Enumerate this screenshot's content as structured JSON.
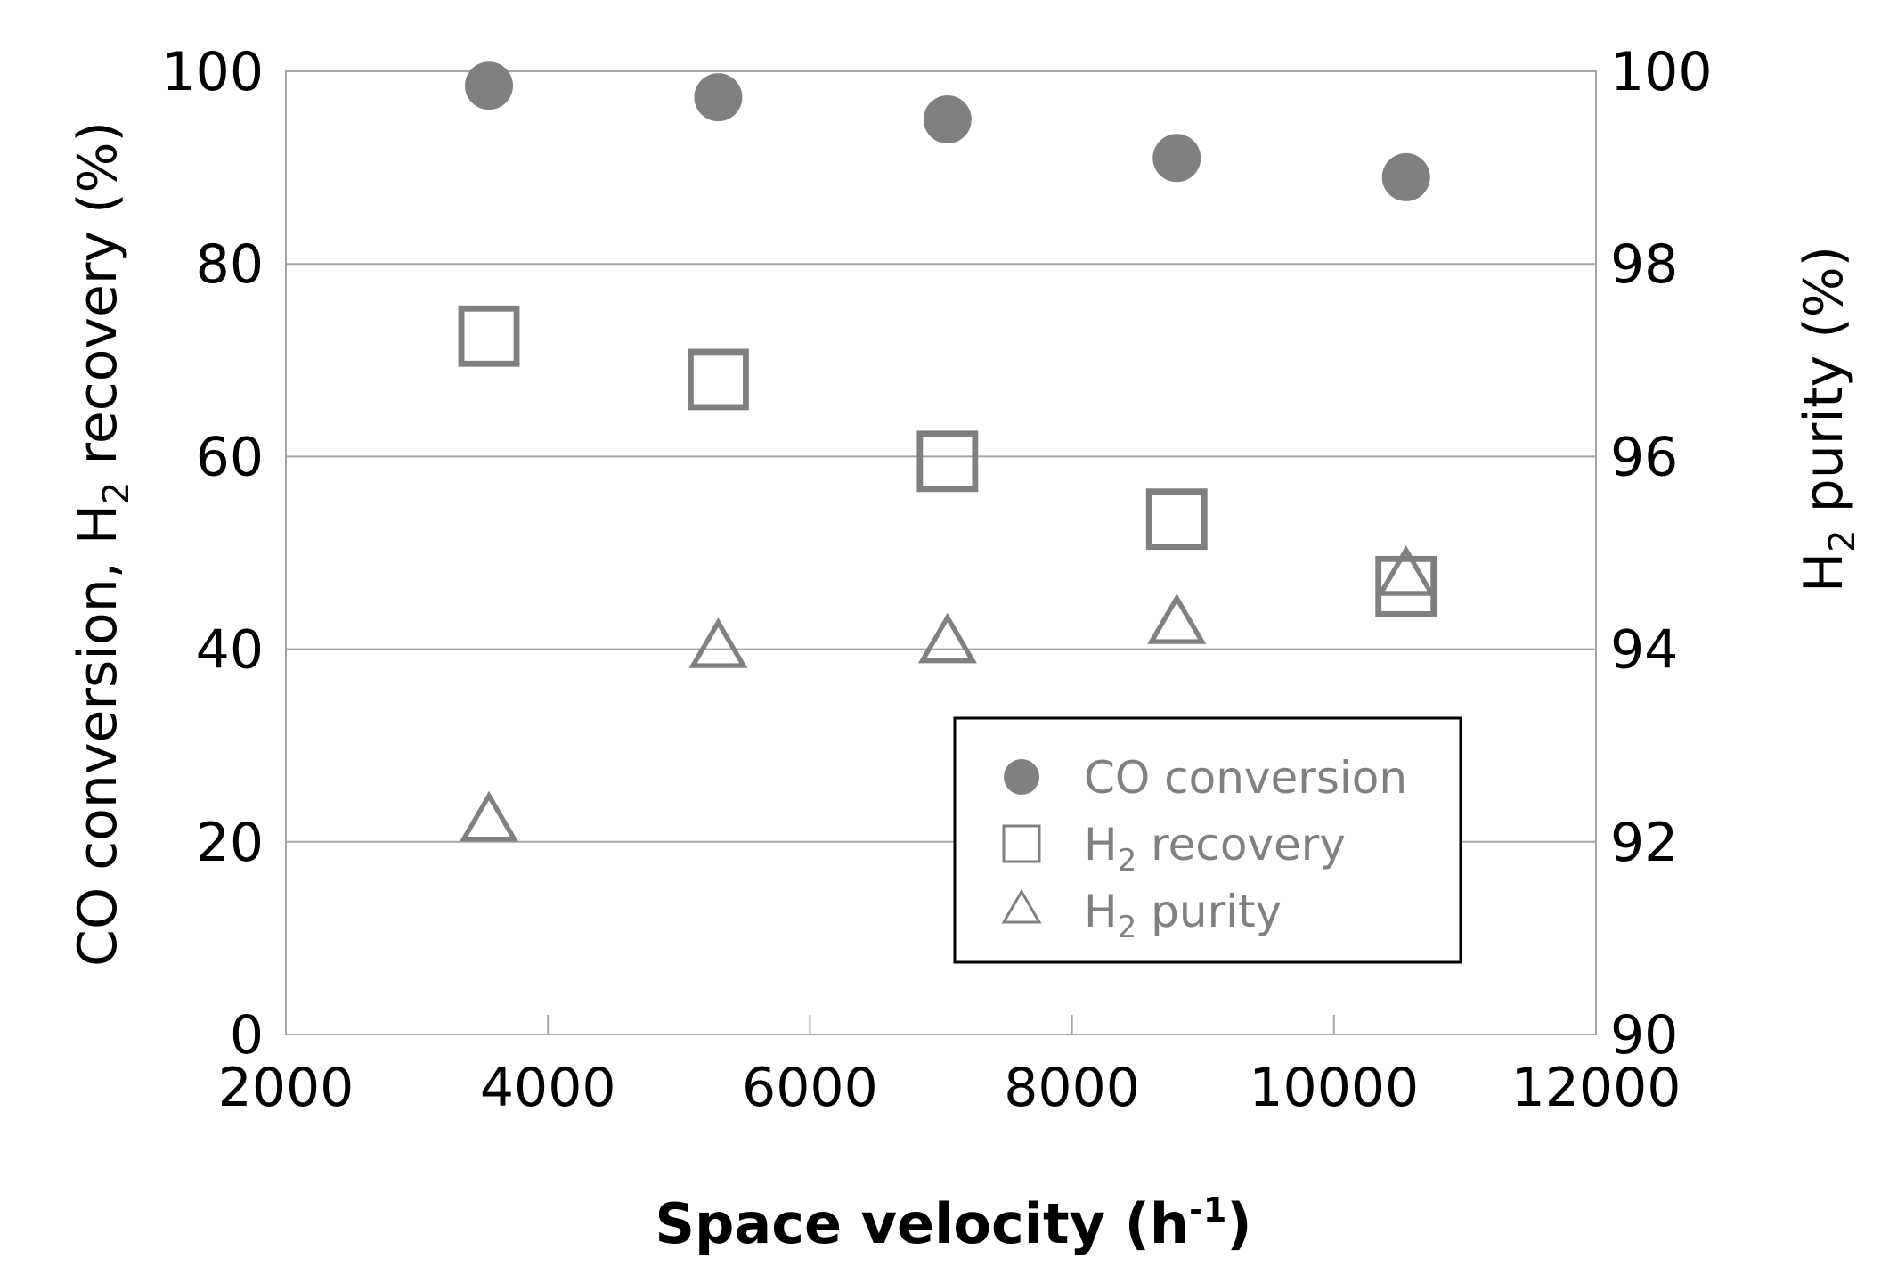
{
  "chart_data": {
    "type": "scatter",
    "title": "",
    "xlabel": "Space velocity (h-1)",
    "xlabel_main": "Space velocity (h",
    "xlabel_sup": "-1",
    "xlabel_end": ")",
    "ylabel_left": "CO conversion, H2 recovery (%)",
    "ylabel_left_pre": "CO conversion, H",
    "ylabel_left_sub": "2",
    "ylabel_left_post": " recovery (%)",
    "ylabel_right": "H2 purity (%)",
    "ylabel_right_pre": "H",
    "ylabel_right_sub": "2",
    "ylabel_right_post": " purity (%)",
    "xlim": [
      2000,
      12000
    ],
    "ylim_left": [
      0,
      100
    ],
    "ylim_right": [
      90,
      100
    ],
    "x_ticks": [
      "2000",
      "4000",
      "6000",
      "8000",
      "10000",
      "12000"
    ],
    "y_left_ticks": [
      "0",
      "20",
      "40",
      "60",
      "80",
      "100"
    ],
    "y_right_ticks": [
      "90",
      "92",
      "94",
      "96",
      "98",
      "100"
    ],
    "grid": true,
    "legend_position": "bottom-right",
    "series": [
      {
        "name": "CO conversion",
        "legend_pre": "CO conversion",
        "legend_sub": "",
        "legend_post": "",
        "marker": "filled-circle",
        "axis": "left",
        "color": "#808080",
        "x": [
          3550,
          5300,
          7050,
          8800,
          10550
        ],
        "y": [
          98.5,
          97.3,
          95.0,
          91.0,
          89.0
        ]
      },
      {
        "name": "H2 recovery",
        "legend_pre": "H",
        "legend_sub": "2",
        "legend_post": " recovery",
        "marker": "open-square",
        "axis": "left",
        "color": "#808080",
        "x": [
          3550,
          5300,
          7050,
          8800,
          10550
        ],
        "y": [
          72.5,
          68.0,
          59.5,
          53.5,
          46.5
        ]
      },
      {
        "name": "H2 purity",
        "legend_pre": "H",
        "legend_sub": "2",
        "legend_post": " purity",
        "marker": "open-triangle",
        "axis": "right",
        "color": "#808080",
        "x": [
          3550,
          5300,
          7050,
          8800,
          10550
        ],
        "y": [
          92.2,
          94.0,
          94.05,
          94.25,
          94.75
        ]
      }
    ]
  }
}
